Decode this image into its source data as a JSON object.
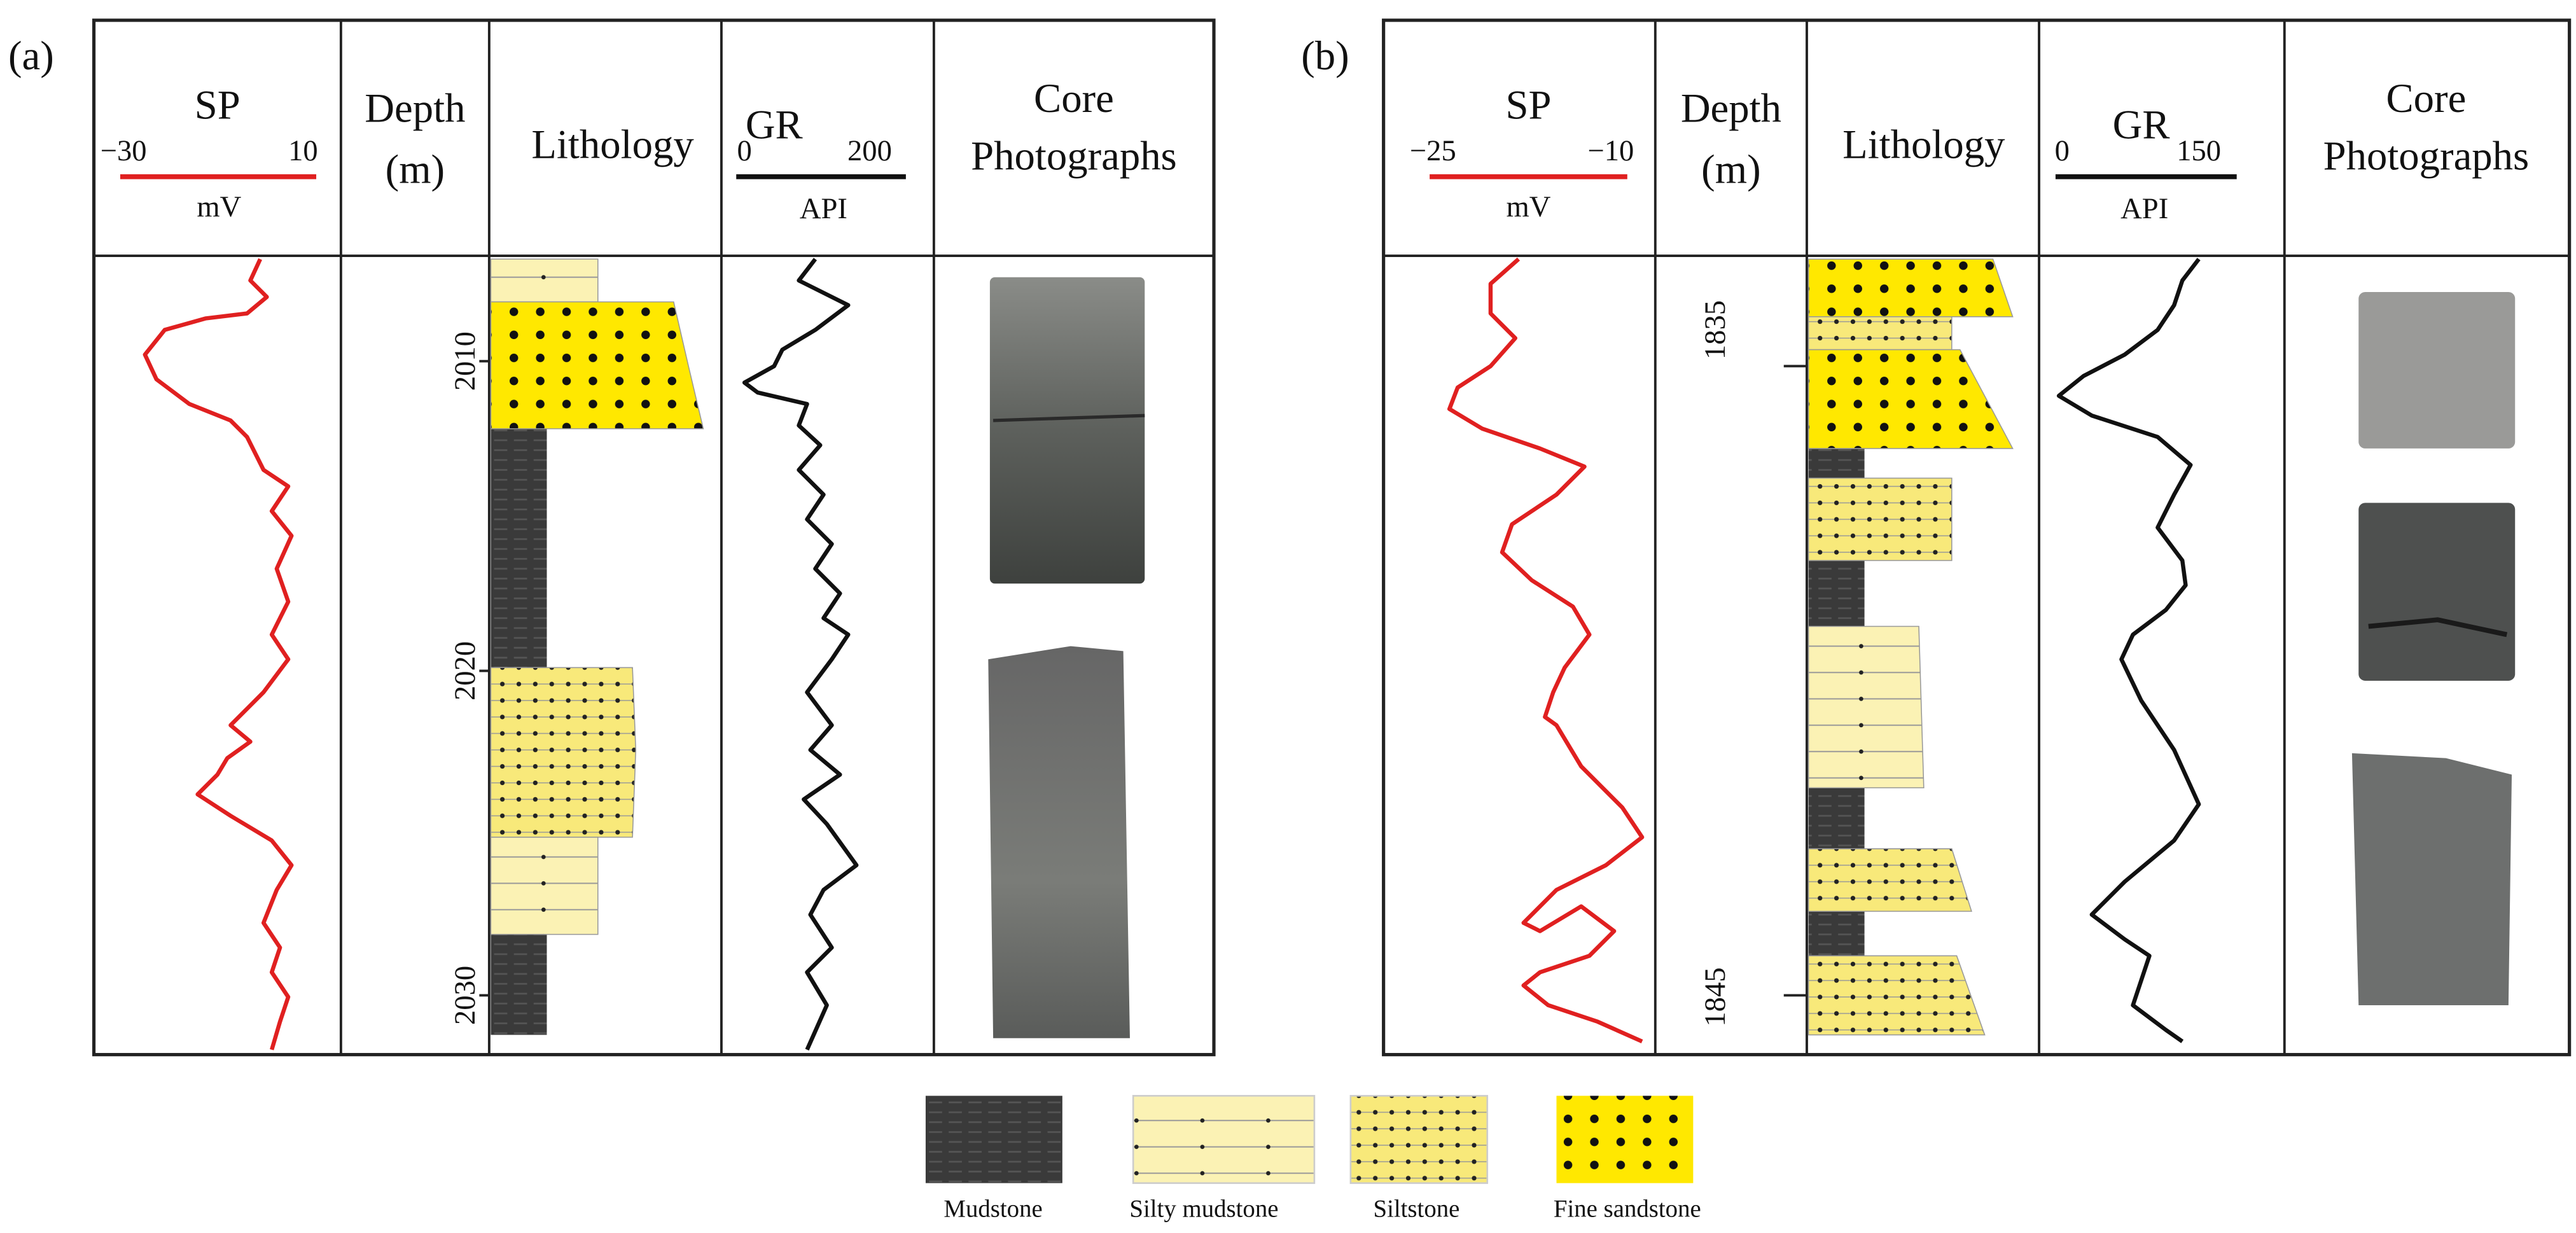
{
  "panels": [
    {
      "label": "(a)",
      "sp": {
        "title": "SP",
        "min": "−30",
        "max": "10",
        "unit": "mV"
      },
      "depth": {
        "title": "Depth",
        "unit": "(m)",
        "ticks": [
          "2010",
          "2020",
          "2030"
        ]
      },
      "lithology": "Lithology",
      "gr": {
        "title": "GR",
        "min": "0",
        "max": "200",
        "unit": "API"
      },
      "core": {
        "title": "Core",
        "subtitle": "Photographs"
      }
    },
    {
      "label": "(b)",
      "sp": {
        "title": "SP",
        "min": "−25",
        "max": "−10",
        "unit": "mV"
      },
      "depth": {
        "title": "Depth",
        "unit": "(m)",
        "ticks": [
          "1835",
          "1845"
        ]
      },
      "lithology": "Lithology",
      "gr": {
        "title": "GR",
        "min": "0",
        "max": "150",
        "unit": "API"
      },
      "core": {
        "title": "Core",
        "subtitle": "Photographs"
      }
    }
  ],
  "legend": [
    "Mudstone",
    "Silty mudstone",
    "Siltstone",
    "Fine sandstone"
  ]
}
